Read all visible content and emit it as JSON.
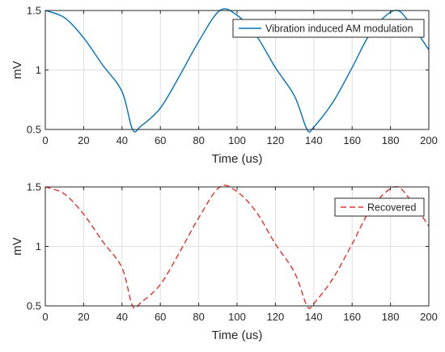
{
  "chart_data": [
    {
      "type": "line",
      "title": "",
      "xlabel": "Time (us)",
      "ylabel": "mV",
      "xlim": [
        0,
        200
      ],
      "ylim": [
        0.5,
        1.5
      ],
      "xticks": [
        "0",
        "20",
        "40",
        "60",
        "80",
        "100",
        "120",
        "140",
        "160",
        "180",
        "200"
      ],
      "yticks": [
        "0.5",
        "1",
        "1.5"
      ],
      "grid": true,
      "legend_position": "top-right",
      "series": [
        {
          "name": "Vibration induced AM modulation",
          "color": "#0072BD",
          "line_style": "solid",
          "x": [
            0,
            10,
            20,
            30,
            40,
            45.5,
            50,
            60,
            70,
            80,
            91,
            100,
            110,
            120,
            130,
            136.5,
            140,
            150,
            160,
            170,
            182,
            190,
            200
          ],
          "y": [
            1.5,
            1.44,
            1.27,
            1.04,
            0.82,
            0.5,
            0.53,
            0.68,
            0.95,
            1.24,
            1.5,
            1.46,
            1.29,
            1.02,
            0.78,
            0.5,
            0.52,
            0.73,
            1.02,
            1.32,
            1.5,
            1.4,
            1.17
          ]
        }
      ]
    },
    {
      "type": "line",
      "title": "",
      "xlabel": "Time (us)",
      "ylabel": "mV",
      "xlim": [
        0,
        200
      ],
      "ylim": [
        0.5,
        1.5
      ],
      "xticks": [
        "0",
        "20",
        "40",
        "60",
        "80",
        "100",
        "120",
        "140",
        "160",
        "180",
        "200"
      ],
      "yticks": [
        "0.5",
        "1",
        "1.5"
      ],
      "grid": true,
      "legend_position": "top-right",
      "series": [
        {
          "name": "Recovered",
          "color": "#E8302A",
          "line_style": "dashed",
          "x": [
            0,
            10,
            20,
            30,
            40,
            45.5,
            50,
            60,
            70,
            80,
            91,
            100,
            110,
            120,
            130,
            136.5,
            140,
            150,
            160,
            170,
            182,
            190,
            200
          ],
          "y": [
            1.5,
            1.44,
            1.27,
            1.04,
            0.82,
            0.5,
            0.53,
            0.68,
            0.95,
            1.24,
            1.5,
            1.46,
            1.29,
            1.02,
            0.78,
            0.5,
            0.52,
            0.73,
            1.02,
            1.32,
            1.5,
            1.4,
            1.17
          ]
        }
      ]
    }
  ]
}
